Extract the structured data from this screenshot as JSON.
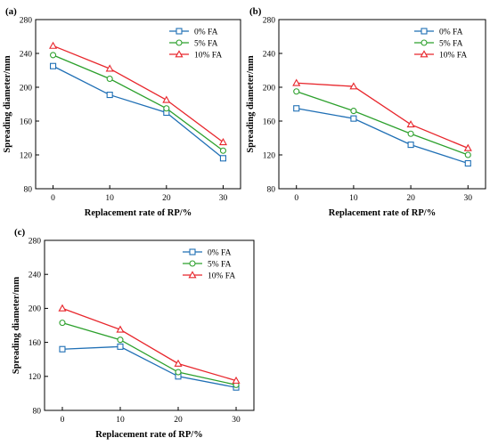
{
  "chart_data": [
    {
      "panel": "(a)",
      "type": "line",
      "x": [
        0,
        10,
        20,
        30
      ],
      "xlabel": "Replacement rate of RP/%",
      "ylabel": "Spreading diameter/mm",
      "xticks": [
        "0",
        "10",
        "20",
        "30"
      ],
      "yticks": [
        "80",
        "120",
        "160",
        "200",
        "240",
        "280"
      ],
      "ylim": [
        80,
        280
      ],
      "grid": false,
      "legend_position": "top-right",
      "series": [
        {
          "name": "0% FA",
          "color": "#1f6fb5",
          "marker": "square",
          "values": [
            225,
            191,
            170,
            116
          ]
        },
        {
          "name": "5% FA",
          "color": "#2ca02c",
          "marker": "circle",
          "values": [
            238,
            210,
            175,
            125
          ]
        },
        {
          "name": "10% FA",
          "color": "#e8262c",
          "marker": "triangle",
          "values": [
            249,
            222,
            185,
            135
          ]
        }
      ]
    },
    {
      "panel": "(b)",
      "type": "line",
      "x": [
        0,
        10,
        20,
        30
      ],
      "xlabel": "Replacement rate of RP/%",
      "ylabel": "Spreading diameter/mm",
      "xticks": [
        "0",
        "10",
        "20",
        "30"
      ],
      "yticks": [
        "80",
        "120",
        "160",
        "200",
        "240",
        "280"
      ],
      "ylim": [
        80,
        280
      ],
      "grid": false,
      "legend_position": "top-right",
      "series": [
        {
          "name": "0% FA",
          "color": "#1f6fb5",
          "marker": "square",
          "values": [
            175,
            163,
            132,
            110
          ]
        },
        {
          "name": "5% FA",
          "color": "#2ca02c",
          "marker": "circle",
          "values": [
            195,
            172,
            145,
            120
          ]
        },
        {
          "name": "10% FA",
          "color": "#e8262c",
          "marker": "triangle",
          "values": [
            205,
            201,
            156,
            128
          ]
        }
      ]
    },
    {
      "panel": "(c)",
      "type": "line",
      "x": [
        0,
        10,
        20,
        30
      ],
      "xlabel": "Replacement rate of RP/%",
      "ylabel": "Spreading diameter/mm",
      "xticks": [
        "0",
        "10",
        "20",
        "30"
      ],
      "yticks": [
        "80",
        "120",
        "160",
        "200",
        "240",
        "280"
      ],
      "ylim": [
        80,
        280
      ],
      "grid": false,
      "legend_position": "top-right",
      "series": [
        {
          "name": "0% FA",
          "color": "#1f6fb5",
          "marker": "square",
          "values": [
            152,
            155,
            120,
            107
          ]
        },
        {
          "name": "5% FA",
          "color": "#2ca02c",
          "marker": "circle",
          "values": [
            183,
            163,
            125,
            110
          ]
        },
        {
          "name": "10% FA",
          "color": "#e8262c",
          "marker": "triangle",
          "values": [
            200,
            175,
            135,
            115
          ]
        }
      ]
    }
  ]
}
